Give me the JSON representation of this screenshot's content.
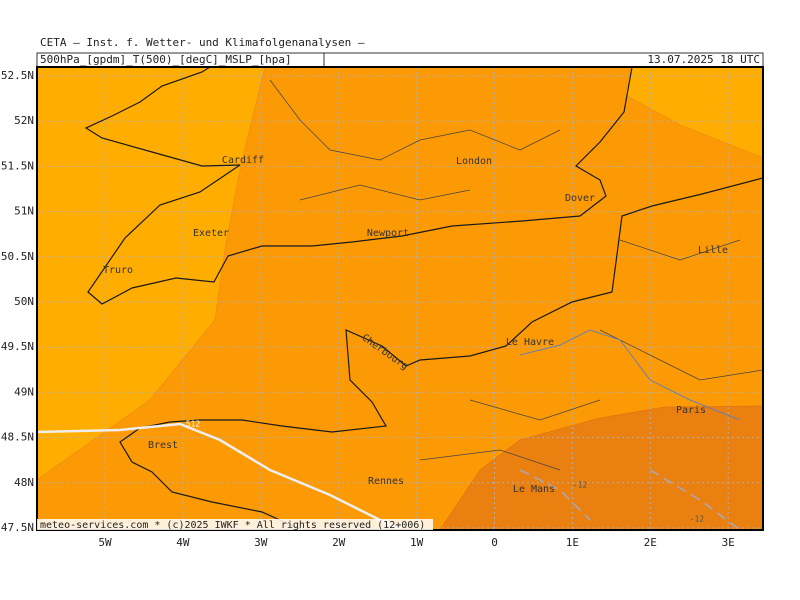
{
  "header": {
    "title": "CETA — Inst. f. Wetter- und Klimafolgenanalysen —",
    "parameters": "500hPa_[gpdm]_T(500)_[degC]_MSLP_[hpa]",
    "valid_time": "13.07.2025 18 UTC"
  },
  "map": {
    "lat_labels": [
      "52.5N",
      "52N",
      "51.5N",
      "51N",
      "50.5N",
      "50N",
      "49.5N",
      "49N",
      "48.5N",
      "48N",
      "47.5N"
    ],
    "lon_labels": [
      "5W",
      "4W",
      "3W",
      "2W",
      "1W",
      "0",
      "1E",
      "2E",
      "3E"
    ],
    "places": [
      "Cardiff",
      "London",
      "Dover",
      "Exeter",
      "Newport",
      "Truro",
      "Lille",
      "Le Havre",
      "Cherbourg",
      "Paris",
      "Brest",
      "Rennes",
      "Le Mans"
    ],
    "contour_labels": [
      "512",
      "-12",
      "-12"
    ],
    "footer": "meteo-services.com * (c)2025 IWKF * All rights reserved (12+006)"
  }
}
